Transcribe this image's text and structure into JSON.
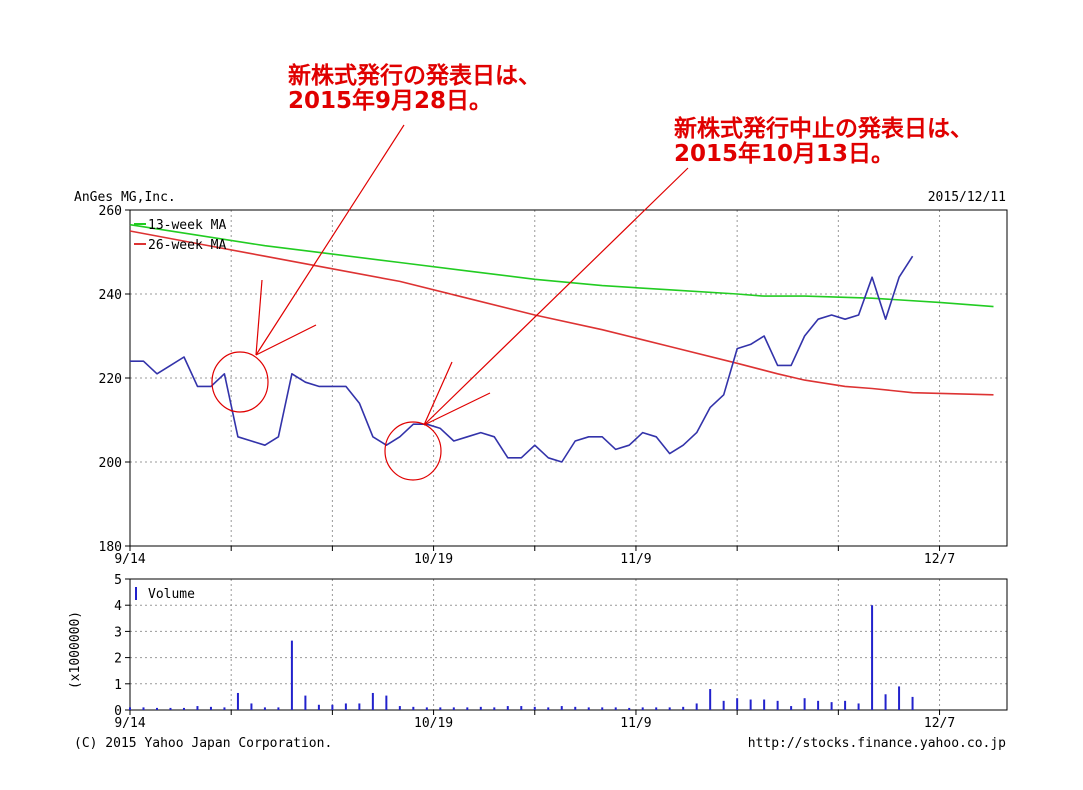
{
  "header": {
    "company": "AnGes MG,Inc.",
    "date": "2015/12/11"
  },
  "footer": {
    "copyright": "(C) 2015 Yahoo Japan Corporation.",
    "url": "http://stocks.finance.yahoo.co.jp"
  },
  "annotations": {
    "a1_line1": "新株式発行の発表日は、",
    "a1_line2": "2015年9月28日。",
    "a2_line1": "新株式発行中止の発表日は、",
    "a2_line2": "2015年10月13日。"
  },
  "colors": {
    "price": "#3333aa",
    "ma13": "#22cc22",
    "ma26": "#dd3333",
    "volume": "#2222cc",
    "annotation": "#e00000",
    "grid": "#999999"
  },
  "chart_data": [
    {
      "type": "line",
      "ylim": [
        180,
        260
      ],
      "yticks": [
        "180",
        "200",
        "220",
        "240",
        "260"
      ],
      "xlim": [
        0,
        65
      ],
      "xticks": [
        {
          "x": 0,
          "label": "9/14"
        },
        {
          "x": 7.5,
          "label": ""
        },
        {
          "x": 15,
          "label": ""
        },
        {
          "x": 22.5,
          "label": "10/19"
        },
        {
          "x": 30,
          "label": ""
        },
        {
          "x": 37.5,
          "label": "11/9"
        },
        {
          "x": 45,
          "label": ""
        },
        {
          "x": 52.5,
          "label": ""
        },
        {
          "x": 60,
          "label": "12/7"
        }
      ],
      "series": [
        {
          "name": "13-week MA",
          "values": [
            [
              0,
              256.5
            ],
            [
              5,
              254
            ],
            [
              10,
              251.5
            ],
            [
              15,
              249.5
            ],
            [
              20,
              247.5
            ],
            [
              25,
              245.5
            ],
            [
              30,
              243.5
            ],
            [
              35,
              242
            ],
            [
              40,
              241
            ],
            [
              45,
              240
            ],
            [
              47,
              239.5
            ],
            [
              50,
              239.5
            ],
            [
              55,
              239
            ],
            [
              60,
              238
            ],
            [
              64,
              237
            ]
          ]
        },
        {
          "name": "26-week MA",
          "values": [
            [
              0,
              255
            ],
            [
              5,
              252
            ],
            [
              10,
              249
            ],
            [
              15,
              246
            ],
            [
              20,
              243
            ],
            [
              25,
              239
            ],
            [
              30,
              235
            ],
            [
              35,
              231.5
            ],
            [
              40,
              227.5
            ],
            [
              45,
              223.5
            ],
            [
              48,
              221
            ],
            [
              50,
              219.5
            ],
            [
              53,
              218
            ],
            [
              55,
              217.5
            ],
            [
              58,
              216.5
            ],
            [
              64,
              216
            ]
          ]
        },
        {
          "name": "",
          "values": [
            [
              0,
              224
            ],
            [
              1,
              224
            ],
            [
              2,
              221
            ],
            [
              3,
              223
            ],
            [
              4,
              225
            ],
            [
              5,
              218
            ],
            [
              6,
              218
            ],
            [
              7,
              221
            ],
            [
              8,
              206
            ],
            [
              9,
              205
            ],
            [
              10,
              204
            ],
            [
              11,
              206
            ],
            [
              12,
              221
            ],
            [
              13,
              219
            ],
            [
              14,
              218
            ],
            [
              15,
              218
            ],
            [
              16,
              218
            ],
            [
              17,
              214
            ],
            [
              18,
              206
            ],
            [
              19,
              204
            ],
            [
              20,
              206
            ],
            [
              21,
              209
            ],
            [
              22,
              209
            ],
            [
              23,
              208
            ],
            [
              24,
              205
            ],
            [
              25,
              206
            ],
            [
              26,
              207
            ],
            [
              27,
              206
            ],
            [
              28,
              201
            ],
            [
              29,
              201
            ],
            [
              30,
              204
            ],
            [
              31,
              201
            ],
            [
              32,
              200
            ],
            [
              33,
              205
            ],
            [
              34,
              206
            ],
            [
              35,
              206
            ],
            [
              36,
              203
            ],
            [
              37,
              204
            ],
            [
              38,
              207
            ],
            [
              39,
              206
            ],
            [
              40,
              202
            ],
            [
              41,
              204
            ],
            [
              42,
              207
            ],
            [
              43,
              213
            ],
            [
              44,
              216
            ],
            [
              45,
              227
            ],
            [
              46,
              228
            ],
            [
              47,
              230
            ],
            [
              48,
              223
            ],
            [
              49,
              223
            ],
            [
              50,
              230
            ],
            [
              51,
              234
            ],
            [
              52,
              235
            ],
            [
              53,
              234
            ],
            [
              54,
              235
            ],
            [
              55,
              244
            ],
            [
              56,
              234
            ],
            [
              57,
              244
            ],
            [
              58,
              249
            ]
          ]
        }
      ]
    },
    {
      "type": "bar",
      "ylim": [
        0,
        5
      ],
      "yticks": [
        "0",
        "1",
        "2",
        "3",
        "4",
        "5"
      ],
      "ylabel": "(x1000000)",
      "xlim": [
        0,
        65
      ],
      "xticks": [
        {
          "x": 0,
          "label": "9/14"
        },
        {
          "x": 7.5,
          "label": ""
        },
        {
          "x": 15,
          "label": ""
        },
        {
          "x": 22.5,
          "label": "10/19"
        },
        {
          "x": 30,
          "label": ""
        },
        {
          "x": 37.5,
          "label": "11/9"
        },
        {
          "x": 45,
          "label": ""
        },
        {
          "x": 52.5,
          "label": ""
        },
        {
          "x": 60,
          "label": "12/7"
        }
      ],
      "series": [
        {
          "name": "Volume",
          "values": [
            [
              0,
              0.1
            ],
            [
              1,
              0.1
            ],
            [
              2,
              0.08
            ],
            [
              3,
              0.08
            ],
            [
              4,
              0.08
            ],
            [
              5,
              0.15
            ],
            [
              6,
              0.12
            ],
            [
              7,
              0.1
            ],
            [
              8,
              0.65
            ],
            [
              9,
              0.25
            ],
            [
              10,
              0.1
            ],
            [
              11,
              0.1
            ],
            [
              12,
              2.65
            ],
            [
              13,
              0.55
            ],
            [
              14,
              0.2
            ],
            [
              15,
              0.2
            ],
            [
              16,
              0.25
            ],
            [
              17,
              0.25
            ],
            [
              18,
              0.65
            ],
            [
              19,
              0.55
            ],
            [
              20,
              0.15
            ],
            [
              21,
              0.12
            ],
            [
              22,
              0.1
            ],
            [
              23,
              0.1
            ],
            [
              24,
              0.1
            ],
            [
              25,
              0.1
            ],
            [
              26,
              0.12
            ],
            [
              27,
              0.1
            ],
            [
              28,
              0.15
            ],
            [
              29,
              0.15
            ],
            [
              30,
              0.12
            ],
            [
              31,
              0.1
            ],
            [
              32,
              0.15
            ],
            [
              33,
              0.12
            ],
            [
              34,
              0.1
            ],
            [
              35,
              0.1
            ],
            [
              36,
              0.1
            ],
            [
              37,
              0.08
            ],
            [
              38,
              0.1
            ],
            [
              39,
              0.1
            ],
            [
              40,
              0.1
            ],
            [
              41,
              0.12
            ],
            [
              42,
              0.25
            ],
            [
              43,
              0.8
            ],
            [
              44,
              0.35
            ],
            [
              45,
              0.45
            ],
            [
              46,
              0.4
            ],
            [
              47,
              0.4
            ],
            [
              48,
              0.35
            ],
            [
              49,
              0.15
            ],
            [
              50,
              0.45
            ],
            [
              51,
              0.35
            ],
            [
              52,
              0.3
            ],
            [
              53,
              0.35
            ],
            [
              54,
              0.25
            ],
            [
              55,
              4.0
            ],
            [
              56,
              0.6
            ],
            [
              57,
              0.9
            ],
            [
              58,
              0.5
            ]
          ]
        }
      ]
    }
  ]
}
